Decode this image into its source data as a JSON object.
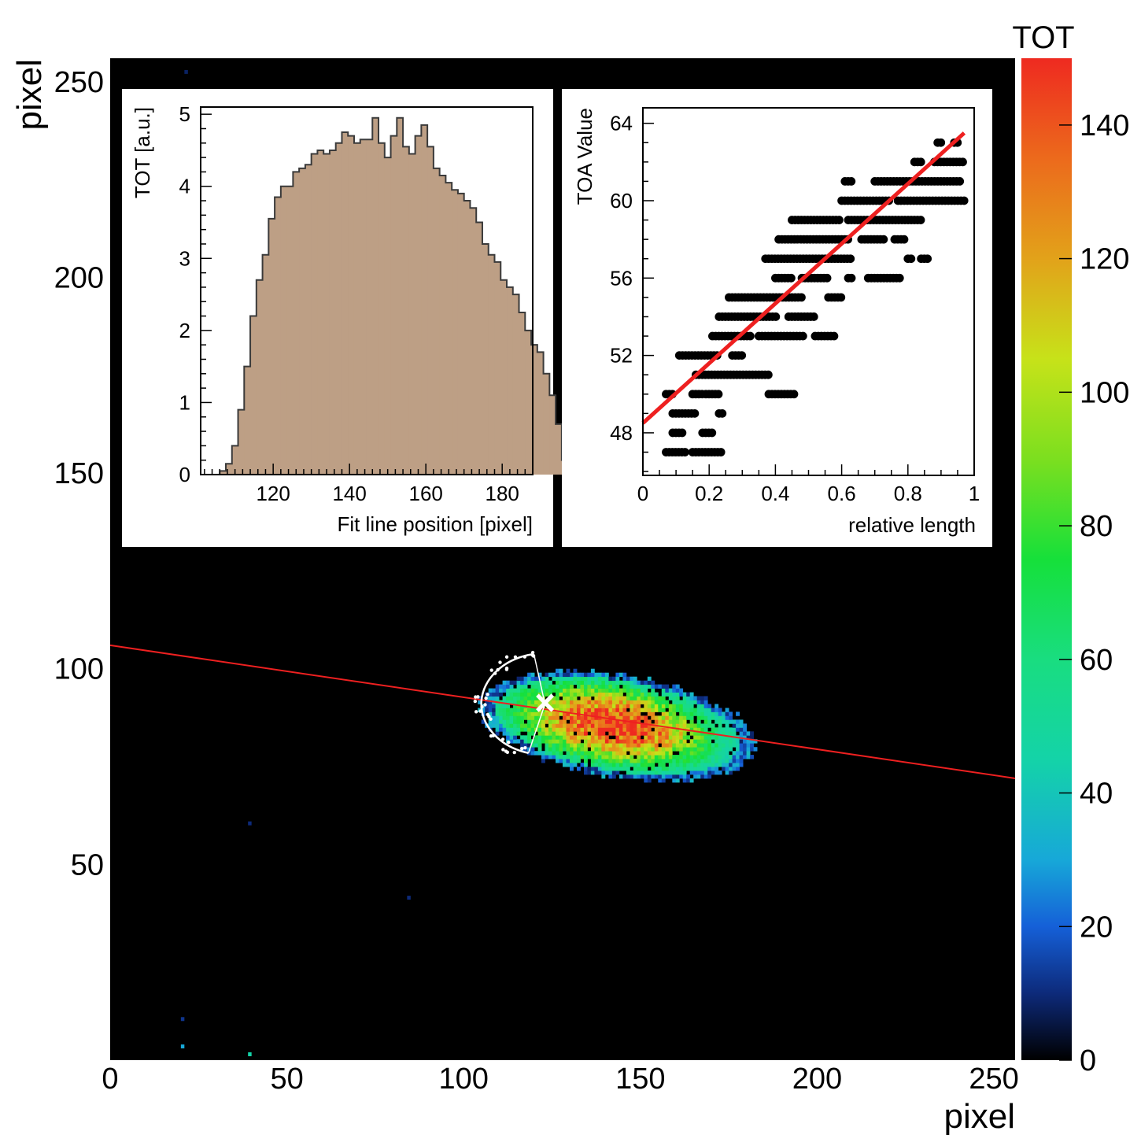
{
  "chart_data": [
    {
      "type": "heatmap",
      "xlabel": "pixel",
      "ylabel": "pixel",
      "xlim": [
        0,
        256
      ],
      "ylim": [
        0,
        256
      ],
      "xticks": [
        0,
        50,
        100,
        150,
        200,
        250
      ],
      "yticks": [
        50,
        100,
        150,
        200,
        250
      ],
      "colorbar": {
        "title": "TOT",
        "range": [
          0,
          150
        ],
        "ticks": [
          0,
          20,
          40,
          60,
          80,
          100,
          120,
          140
        ],
        "stops": [
          {
            "v": 0,
            "color": "#000000"
          },
          {
            "v": 10,
            "color": "#0d2a7a"
          },
          {
            "v": 20,
            "color": "#1560d8"
          },
          {
            "v": 30,
            "color": "#17a8d8"
          },
          {
            "v": 45,
            "color": "#14d3a8"
          },
          {
            "v": 60,
            "color": "#19dd80"
          },
          {
            "v": 75,
            "color": "#16e03a"
          },
          {
            "v": 90,
            "color": "#7cdf1f"
          },
          {
            "v": 105,
            "color": "#c7e219"
          },
          {
            "v": 120,
            "color": "#e2a21a"
          },
          {
            "v": 135,
            "color": "#ec6a1c"
          },
          {
            "v": 150,
            "color": "#ee2a20"
          }
        ]
      },
      "cluster": {
        "center": [
          143,
          85
        ],
        "half_axes": [
          39,
          13
        ],
        "angle_deg": -8,
        "peak_tot": 140
      },
      "isolated_hits": [
        {
          "x": 20,
          "y": 3,
          "tot": 30
        },
        {
          "x": 20,
          "y": 10,
          "tot": 12
        },
        {
          "x": 39,
          "y": 1,
          "tot": 45
        },
        {
          "x": 39,
          "y": 60,
          "tot": 10
        },
        {
          "x": 84,
          "y": 41,
          "tot": 10
        },
        {
          "x": 21,
          "y": 252,
          "tot": 8
        }
      ],
      "fit_line": {
        "points": [
          [
            0,
            106
          ],
          [
            256,
            72
          ]
        ],
        "color": "#ee2020"
      },
      "marker": {
        "x": 123,
        "y": 91,
        "symbol": "×",
        "color": "#ffffff"
      },
      "head_arc": {
        "center": [
          123,
          91
        ],
        "radius": 18,
        "color": "#ffffff"
      }
    },
    {
      "type": "bar",
      "xlabel": "Fit line position [pixel]",
      "ylabel": "TOT [a.u.]",
      "xlim": [
        101,
        188
      ],
      "ylim": [
        0,
        5.1
      ],
      "xticks": [
        120,
        140,
        160,
        180
      ],
      "yticks": [
        0,
        1,
        2,
        3,
        4,
        5
      ],
      "fill": "#bd9f85",
      "bin_start": 106,
      "bin_width": 1.6,
      "values": [
        0.05,
        0.15,
        0.4,
        0.9,
        1.5,
        2.2,
        2.7,
        3.05,
        3.55,
        3.85,
        4.0,
        4.0,
        4.2,
        4.25,
        4.3,
        4.45,
        4.5,
        4.45,
        4.5,
        4.6,
        4.75,
        4.7,
        4.6,
        4.65,
        4.65,
        4.95,
        4.6,
        4.4,
        4.7,
        4.95,
        4.55,
        4.45,
        4.7,
        4.85,
        4.55,
        4.25,
        4.15,
        4.05,
        3.95,
        3.9,
        3.8,
        3.7,
        3.5,
        3.2,
        3.05,
        2.95,
        2.7,
        2.6,
        2.5,
        2.25,
        2.0,
        1.8,
        1.7,
        1.4,
        1.1,
        0.7,
        0.2,
        0.05
      ]
    },
    {
      "type": "scatter",
      "xlabel": "relative length",
      "ylabel": "TOA Value",
      "xlim": [
        0,
        1
      ],
      "ylim": [
        45.8,
        64.8
      ],
      "xticks": [
        "0",
        "0.2",
        "0.4",
        "0.6",
        "0.8",
        "1"
      ],
      "yticks": [
        48,
        52,
        56,
        60,
        64
      ],
      "point_color": "#000000",
      "segments": [
        [
          47,
          0.07,
          0.13
        ],
        [
          47,
          0.15,
          0.24
        ],
        [
          48,
          0.09,
          0.12
        ],
        [
          48,
          0.18,
          0.21
        ],
        [
          49,
          0.09,
          0.16
        ],
        [
          49,
          0.23,
          0.24
        ],
        [
          50,
          0.07,
          0.09
        ],
        [
          50,
          0.15,
          0.18
        ],
        [
          50,
          0.19,
          0.23
        ],
        [
          50,
          0.38,
          0.46
        ],
        [
          51,
          0.16,
          0.38
        ],
        [
          52,
          0.11,
          0.23
        ],
        [
          52,
          0.27,
          0.3
        ],
        [
          53,
          0.21,
          0.33
        ],
        [
          53,
          0.35,
          0.49
        ],
        [
          53,
          0.52,
          0.58
        ],
        [
          54,
          0.23,
          0.41
        ],
        [
          54,
          0.44,
          0.52
        ],
        [
          55,
          0.26,
          0.48
        ],
        [
          55,
          0.56,
          0.6
        ],
        [
          56,
          0.4,
          0.45
        ],
        [
          56,
          0.48,
          0.56
        ],
        [
          56,
          0.62,
          0.63
        ],
        [
          56,
          0.68,
          0.78
        ],
        [
          57,
          0.37,
          0.63
        ],
        [
          57,
          0.8,
          0.81
        ],
        [
          57,
          0.84,
          0.86
        ],
        [
          58,
          0.41,
          0.62
        ],
        [
          58,
          0.66,
          0.73
        ],
        [
          58,
          0.76,
          0.79
        ],
        [
          59,
          0.45,
          0.6
        ],
        [
          59,
          0.62,
          0.84
        ],
        [
          60,
          0.6,
          0.75
        ],
        [
          60,
          0.77,
          0.97
        ],
        [
          61,
          0.61,
          0.63
        ],
        [
          61,
          0.7,
          0.96
        ],
        [
          62,
          0.82,
          0.84
        ],
        [
          62,
          0.88,
          0.97
        ],
        [
          63,
          0.89,
          0.9
        ],
        [
          63,
          0.94,
          0.95
        ]
      ],
      "fit": {
        "x": [
          0,
          0.97
        ],
        "y": [
          48.5,
          63.5
        ],
        "color": "#ee2020"
      }
    }
  ]
}
